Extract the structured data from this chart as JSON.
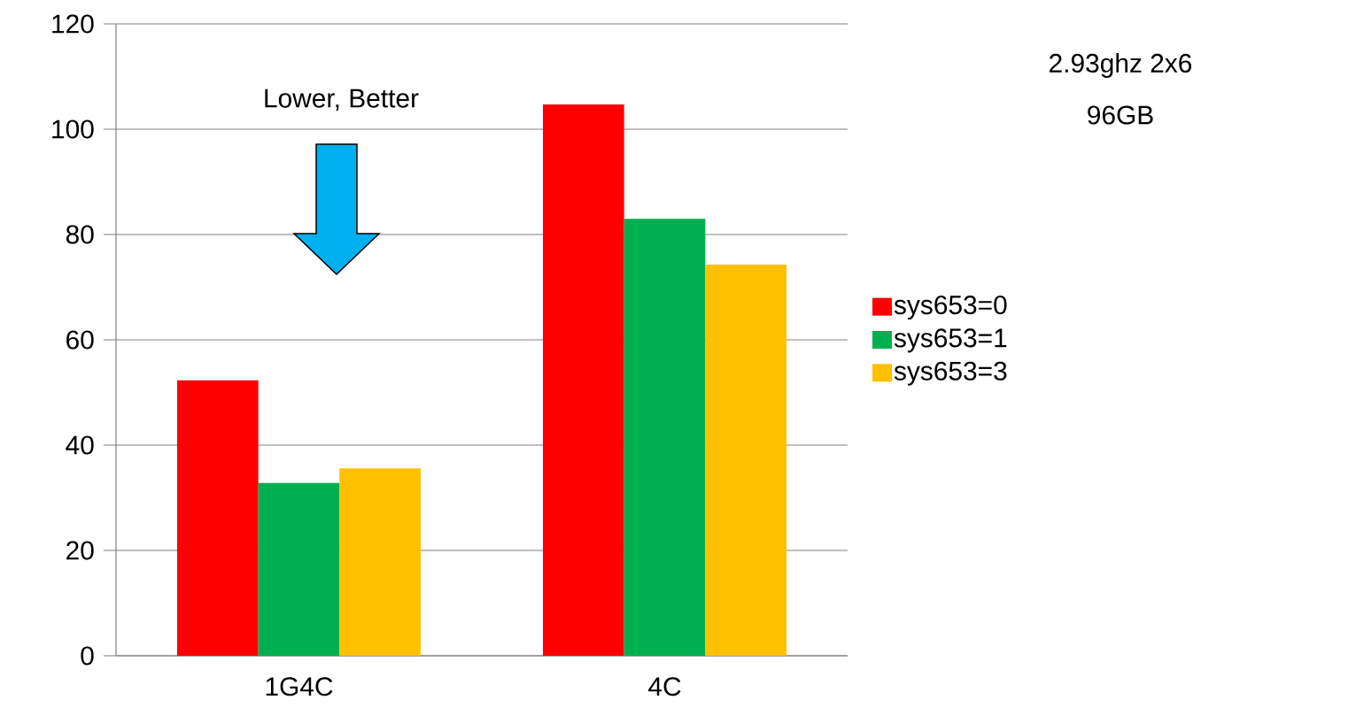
{
  "chart_data": {
    "type": "bar",
    "categories": [
      "1G4C",
      "4C"
    ],
    "series": [
      {
        "name": "sys653=0",
        "color": "#ff0000",
        "values": [
          52.3,
          104.7
        ]
      },
      {
        "name": "sys653=1",
        "color": "#00b050",
        "values": [
          32.8,
          83.0
        ]
      },
      {
        "name": "sys653=3",
        "color": "#ffc000",
        "values": [
          35.6,
          74.3
        ]
      }
    ],
    "ylim": [
      0,
      120
    ],
    "yticks": [
      0,
      20,
      40,
      60,
      80,
      100,
      120
    ],
    "grid": "y",
    "legend": "right",
    "annotations": [
      "Lower, Better",
      "2.93ghz 2x6",
      "96GB"
    ]
  }
}
